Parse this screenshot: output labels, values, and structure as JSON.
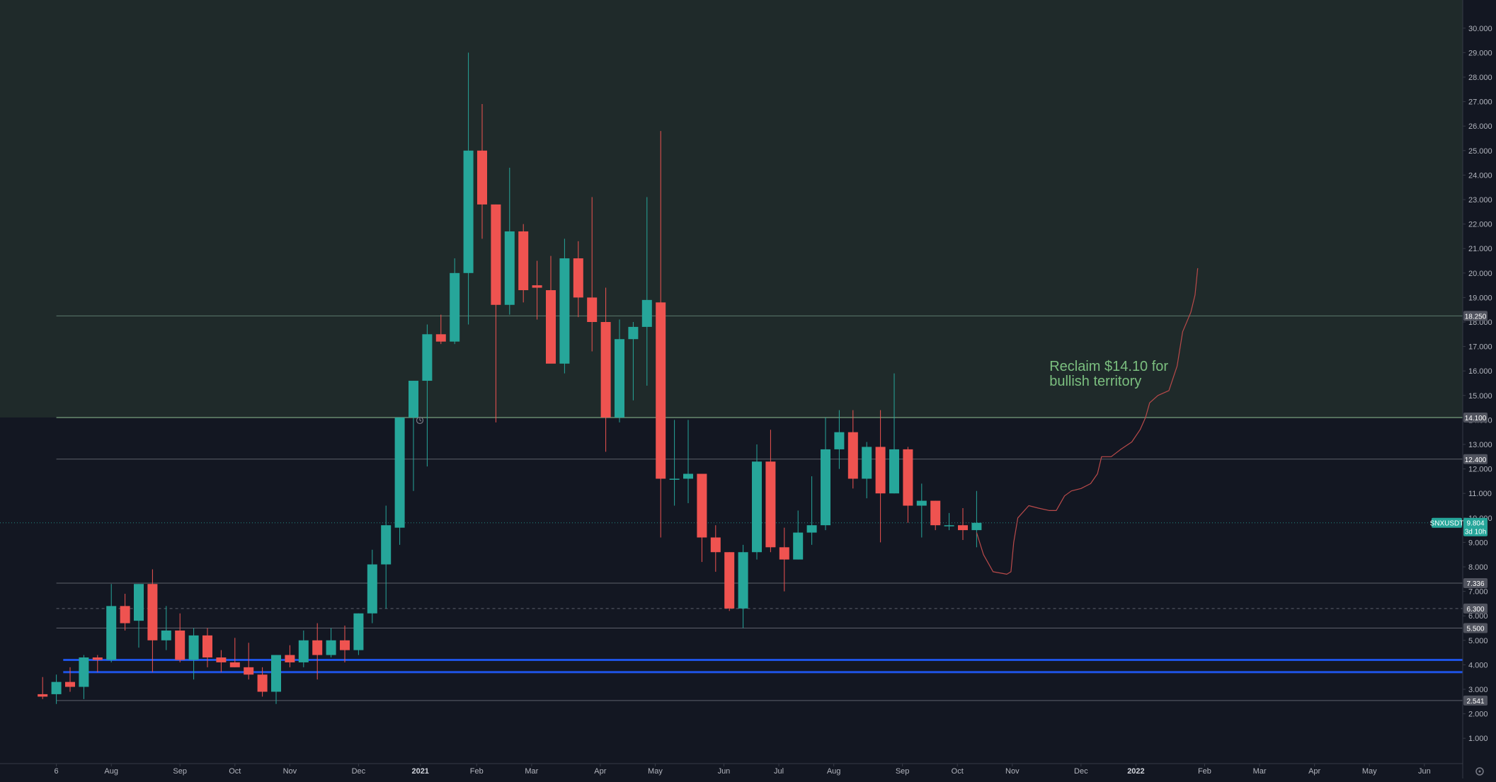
{
  "chart_data": {
    "type": "candlestick",
    "symbol_label": "SNXUSDT",
    "last_price_label": "9.804",
    "countdown_label": "3d 10h",
    "ylim": [
      0,
      30.5
    ],
    "y_ticks": [
      "1.000",
      "2.000",
      "3.000",
      "4.000",
      "5.000",
      "6.000",
      "7.000",
      "8.000",
      "9.000",
      "10.000",
      "11.000",
      "12.000",
      "13.000",
      "14.000",
      "15.000",
      "16.000",
      "17.000",
      "18.000",
      "19.000",
      "20.000",
      "21.000",
      "22.000",
      "23.000",
      "24.000",
      "25.000",
      "26.000",
      "27.000",
      "28.000",
      "29.000",
      "30.000"
    ],
    "x_labels": [
      {
        "label": "6",
        "x": 1,
        "bold": false
      },
      {
        "label": "Aug",
        "x": 5,
        "bold": false
      },
      {
        "label": "Sep",
        "x": 10,
        "bold": false
      },
      {
        "label": "Oct",
        "x": 14,
        "bold": false
      },
      {
        "label": "Nov",
        "x": 18,
        "bold": false
      },
      {
        "label": "Dec",
        "x": 23,
        "bold": false
      },
      {
        "label": "2021",
        "x": 27.5,
        "bold": true
      },
      {
        "label": "Feb",
        "x": 31.6,
        "bold": false
      },
      {
        "label": "Mar",
        "x": 35.6,
        "bold": false
      },
      {
        "label": "Apr",
        "x": 40.6,
        "bold": false
      },
      {
        "label": "May",
        "x": 44.6,
        "bold": false
      },
      {
        "label": "Jun",
        "x": 49.6,
        "bold": false
      },
      {
        "label": "Jul",
        "x": 53.6,
        "bold": false
      },
      {
        "label": "Aug",
        "x": 57.6,
        "bold": false
      },
      {
        "label": "Sep",
        "x": 62.6,
        "bold": false
      },
      {
        "label": "Oct",
        "x": 66.6,
        "bold": false
      },
      {
        "label": "Nov",
        "x": 70.6,
        "bold": false
      },
      {
        "label": "Dec",
        "x": 75.6,
        "bold": false
      },
      {
        "label": "2022",
        "x": 79.6,
        "bold": true
      },
      {
        "label": "Feb",
        "x": 84.6,
        "bold": false
      },
      {
        "label": "Mar",
        "x": 88.6,
        "bold": false
      },
      {
        "label": "Apr",
        "x": 92.6,
        "bold": false
      },
      {
        "label": "May",
        "x": 96.6,
        "bold": false
      },
      {
        "label": "Jun",
        "x": 100.6,
        "bold": false
      }
    ],
    "candles": [
      {
        "o": 2.8,
        "h": 3.5,
        "l": 2.6,
        "c": 2.7
      },
      {
        "o": 2.8,
        "h": 3.6,
        "l": 2.4,
        "c": 3.3
      },
      {
        "o": 3.3,
        "h": 3.9,
        "l": 2.9,
        "c": 3.1
      },
      {
        "o": 3.1,
        "h": 4.4,
        "l": 2.6,
        "c": 4.3
      },
      {
        "o": 4.3,
        "h": 4.4,
        "l": 3.7,
        "c": 4.2
      },
      {
        "o": 4.2,
        "h": 7.3,
        "l": 4.1,
        "c": 6.4
      },
      {
        "o": 6.4,
        "h": 6.9,
        "l": 5.4,
        "c": 5.7
      },
      {
        "o": 5.8,
        "h": 7.3,
        "l": 4.7,
        "c": 7.3
      },
      {
        "o": 7.3,
        "h": 7.9,
        "l": 3.7,
        "c": 5.0
      },
      {
        "o": 5.0,
        "h": 6.4,
        "l": 4.6,
        "c": 5.4
      },
      {
        "o": 5.4,
        "h": 6.1,
        "l": 4.1,
        "c": 4.2
      },
      {
        "o": 4.2,
        "h": 5.5,
        "l": 3.4,
        "c": 5.2
      },
      {
        "o": 5.2,
        "h": 5.5,
        "l": 3.9,
        "c": 4.3
      },
      {
        "o": 4.3,
        "h": 4.6,
        "l": 3.7,
        "c": 4.1
      },
      {
        "o": 4.1,
        "h": 5.1,
        "l": 3.9,
        "c": 3.9
      },
      {
        "o": 3.9,
        "h": 4.9,
        "l": 3.4,
        "c": 3.6
      },
      {
        "o": 3.6,
        "h": 3.9,
        "l": 2.7,
        "c": 2.9
      },
      {
        "o": 2.9,
        "h": 4.4,
        "l": 2.4,
        "c": 4.4
      },
      {
        "o": 4.4,
        "h": 4.8,
        "l": 3.9,
        "c": 4.1
      },
      {
        "o": 4.1,
        "h": 5.4,
        "l": 3.9,
        "c": 5.0
      },
      {
        "o": 5.0,
        "h": 5.7,
        "l": 3.4,
        "c": 4.4
      },
      {
        "o": 4.4,
        "h": 5.5,
        "l": 4.3,
        "c": 5.0
      },
      {
        "o": 5.0,
        "h": 5.6,
        "l": 4.1,
        "c": 4.6
      },
      {
        "o": 4.6,
        "h": 6.1,
        "l": 4.4,
        "c": 6.1
      },
      {
        "o": 6.1,
        "h": 8.7,
        "l": 5.7,
        "c": 8.1
      },
      {
        "o": 8.1,
        "h": 10.5,
        "l": 6.3,
        "c": 9.7
      },
      {
        "o": 9.6,
        "h": 14.1,
        "l": 8.9,
        "c": 14.1
      },
      {
        "o": 14.1,
        "h": 15.6,
        "l": 11.1,
        "c": 15.6
      },
      {
        "o": 15.6,
        "h": 17.9,
        "l": 12.1,
        "c": 17.5
      },
      {
        "o": 17.5,
        "h": 18.3,
        "l": 17.1,
        "c": 17.2
      },
      {
        "o": 17.2,
        "h": 20.6,
        "l": 17.1,
        "c": 20.0
      },
      {
        "o": 20.0,
        "h": 29.0,
        "l": 17.9,
        "c": 25.0
      },
      {
        "o": 25.0,
        "h": 26.9,
        "l": 21.4,
        "c": 22.8
      },
      {
        "o": 22.8,
        "h": 22.8,
        "l": 13.9,
        "c": 18.7
      },
      {
        "o": 18.7,
        "h": 24.3,
        "l": 18.3,
        "c": 21.7
      },
      {
        "o": 21.7,
        "h": 22.0,
        "l": 18.8,
        "c": 19.3
      },
      {
        "o": 19.5,
        "h": 20.5,
        "l": 18.1,
        "c": 19.4
      },
      {
        "o": 19.3,
        "h": 20.7,
        "l": 16.4,
        "c": 16.3
      },
      {
        "o": 16.3,
        "h": 21.4,
        "l": 15.9,
        "c": 20.6
      },
      {
        "o": 20.6,
        "h": 21.3,
        "l": 18.2,
        "c": 19.0
      },
      {
        "o": 19.0,
        "h": 23.1,
        "l": 16.8,
        "c": 18.0
      },
      {
        "o": 18.0,
        "h": 19.4,
        "l": 12.7,
        "c": 14.1
      },
      {
        "o": 14.1,
        "h": 18.1,
        "l": 13.9,
        "c": 17.3
      },
      {
        "o": 17.3,
        "h": 18.0,
        "l": 14.8,
        "c": 17.8
      },
      {
        "o": 17.8,
        "h": 23.1,
        "l": 15.4,
        "c": 18.9
      },
      {
        "o": 18.8,
        "h": 25.8,
        "l": 9.2,
        "c": 11.6
      },
      {
        "o": 11.6,
        "h": 14.0,
        "l": 10.5,
        "c": 11.6
      },
      {
        "o": 11.6,
        "h": 14.0,
        "l": 10.6,
        "c": 11.8
      },
      {
        "o": 11.8,
        "h": 11.8,
        "l": 8.2,
        "c": 9.2
      },
      {
        "o": 9.2,
        "h": 9.7,
        "l": 7.8,
        "c": 8.6
      },
      {
        "o": 8.6,
        "h": 8.6,
        "l": 6.2,
        "c": 6.3
      },
      {
        "o": 6.3,
        "h": 8.9,
        "l": 5.5,
        "c": 8.6
      },
      {
        "o": 8.6,
        "h": 13.0,
        "l": 8.3,
        "c": 12.3
      },
      {
        "o": 12.3,
        "h": 13.6,
        "l": 8.6,
        "c": 8.8
      },
      {
        "o": 8.8,
        "h": 9.6,
        "l": 7.0,
        "c": 8.3
      },
      {
        "o": 8.3,
        "h": 10.3,
        "l": 8.3,
        "c": 9.4
      },
      {
        "o": 9.4,
        "h": 11.7,
        "l": 8.9,
        "c": 9.7
      },
      {
        "o": 9.7,
        "h": 14.1,
        "l": 9.5,
        "c": 12.8
      },
      {
        "o": 12.8,
        "h": 14.4,
        "l": 12.0,
        "c": 13.5
      },
      {
        "o": 13.5,
        "h": 14.4,
        "l": 11.2,
        "c": 11.6
      },
      {
        "o": 11.6,
        "h": 13.1,
        "l": 10.8,
        "c": 12.9
      },
      {
        "o": 12.9,
        "h": 14.4,
        "l": 9.0,
        "c": 11.0
      },
      {
        "o": 11.0,
        "h": 15.9,
        "l": 11.0,
        "c": 12.8
      },
      {
        "o": 12.8,
        "h": 12.9,
        "l": 9.8,
        "c": 10.5
      },
      {
        "o": 10.5,
        "h": 11.4,
        "l": 9.2,
        "c": 10.7
      },
      {
        "o": 10.7,
        "h": 10.7,
        "l": 9.5,
        "c": 9.7
      },
      {
        "o": 9.7,
        "h": 10.2,
        "l": 9.5,
        "c": 9.7
      },
      {
        "o": 9.7,
        "h": 10.4,
        "l": 9.1,
        "c": 9.5
      },
      {
        "o": 9.5,
        "h": 11.1,
        "l": 8.8,
        "c": 9.8
      }
    ],
    "levels": [
      {
        "value": 18.25,
        "label": "18.250",
        "color": "#5b7a6e",
        "style": "solid",
        "width": 1
      },
      {
        "value": 14.1,
        "label": "14.100",
        "color": "#8fbf93",
        "style": "solid",
        "width": 1
      },
      {
        "value": 12.4,
        "label": "12.400",
        "color": "#5d606b",
        "style": "solid",
        "width": 1
      },
      {
        "value": 7.336,
        "label": "7.336",
        "color": "#5d606b",
        "style": "solid",
        "width": 1
      },
      {
        "value": 6.3,
        "label": "6.300",
        "color": "#5d606b",
        "style": "dashed",
        "width": 1
      },
      {
        "value": 5.5,
        "label": "5.500",
        "color": "#5d606b",
        "style": "solid",
        "width": 1
      },
      {
        "value": 4.2,
        "label": "",
        "color": "#1e53e5",
        "style": "solid",
        "width": 3
      },
      {
        "value": 3.7,
        "label": "",
        "color": "#1e53e5",
        "style": "solid",
        "width": 3
      },
      {
        "value": 2.541,
        "label": "2.541",
        "color": "#5d606b",
        "style": "solid",
        "width": 1
      }
    ],
    "bullish_zone": {
      "from": 14.1,
      "to": 30.5,
      "color": "#1f2a2a"
    },
    "projection": [
      [
        68.0,
        9.4
      ],
      [
        68.5,
        8.5
      ],
      [
        69.2,
        7.8
      ],
      [
        70.2,
        7.7
      ],
      [
        70.5,
        7.8
      ],
      [
        70.7,
        9.0
      ],
      [
        71.0,
        10.0
      ],
      [
        71.8,
        10.5
      ],
      [
        72.5,
        10.4
      ],
      [
        73.3,
        10.3
      ],
      [
        73.8,
        10.3
      ],
      [
        74.4,
        10.9
      ],
      [
        74.9,
        11.1
      ],
      [
        75.6,
        11.2
      ],
      [
        76.3,
        11.4
      ],
      [
        76.8,
        11.8
      ],
      [
        77.1,
        12.5
      ],
      [
        77.8,
        12.5
      ],
      [
        78.5,
        12.8
      ],
      [
        79.3,
        13.1
      ],
      [
        79.9,
        13.6
      ],
      [
        80.3,
        14.1
      ],
      [
        80.6,
        14.7
      ],
      [
        81.2,
        15.0
      ],
      [
        82.0,
        15.2
      ],
      [
        82.3,
        15.7
      ],
      [
        82.6,
        16.2
      ],
      [
        83.0,
        17.6
      ],
      [
        83.6,
        18.4
      ],
      [
        83.9,
        19.1
      ],
      [
        84.1,
        20.2
      ]
    ],
    "annotation": {
      "line1": "Reclaim $14.10 for",
      "line2": "bullish territory",
      "x": 73.3,
      "y": 16.0,
      "color": "#7bbf7f"
    }
  }
}
